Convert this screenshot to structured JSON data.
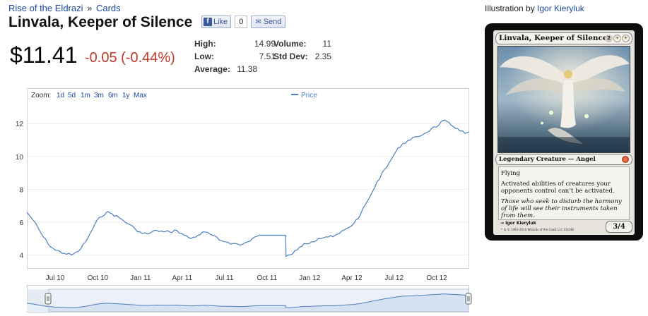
{
  "breadcrumb": {
    "set": "Rise of the Eldrazi",
    "separator": "»",
    "section": "Cards"
  },
  "title": "Linvala, Keeper of Silence",
  "social": {
    "like_label": "Like",
    "like_count": "0",
    "send_label": "Send"
  },
  "price": {
    "current": "$11.41",
    "change": "-0.05 (-0.44%)"
  },
  "stats": {
    "high_label": "High:",
    "high": "14.99",
    "low_label": "Low:",
    "low": "7.51",
    "average_label": "Average:",
    "average": "11.38",
    "volume_label": "Volume:",
    "volume": "11",
    "stddev_label": "Std Dev:",
    "stddev": "2.35"
  },
  "chart": {
    "zoom_label": "Zoom:",
    "zoom_options": [
      "1d",
      "5d",
      "1m",
      "3m",
      "6m",
      "1y",
      "Max"
    ],
    "legend_label": "Price"
  },
  "chart_data": {
    "type": "line",
    "series": [
      {
        "name": "Price",
        "x": [
          "2010-05-01",
          "2010-05-15",
          "2010-06-01",
          "2010-06-15",
          "2010-07-01",
          "2010-07-20",
          "2010-08-05",
          "2010-08-20",
          "2010-09-05",
          "2010-09-20",
          "2010-10-05",
          "2010-10-20",
          "2010-11-01",
          "2010-11-20",
          "2010-12-05",
          "2010-12-20",
          "2011-01-05",
          "2011-01-20",
          "2011-02-05",
          "2011-02-20",
          "2011-03-05",
          "2011-03-20",
          "2011-04-05",
          "2011-04-20",
          "2011-05-05",
          "2011-05-20",
          "2011-06-05",
          "2011-06-20",
          "2011-07-05",
          "2011-07-20",
          "2011-08-05",
          "2011-08-20",
          "2011-09-05",
          "2011-09-20",
          "2011-10-05",
          "2011-10-20",
          "2011-11-05",
          "2011-11-10",
          "2011-11-11",
          "2011-11-20",
          "2011-12-05",
          "2011-12-20",
          "2012-01-05",
          "2012-01-20",
          "2012-02-05",
          "2012-02-20",
          "2012-03-05",
          "2012-03-20",
          "2012-04-05",
          "2012-04-20",
          "2012-05-05",
          "2012-05-20",
          "2012-06-05",
          "2012-06-20",
          "2012-07-05",
          "2012-07-20",
          "2012-08-05",
          "2012-08-20",
          "2012-09-05",
          "2012-09-20",
          "2012-10-05",
          "2012-10-15",
          "2012-11-01",
          "2012-11-15",
          "2012-12-01",
          "2012-12-10"
        ],
        "y": [
          6.6,
          6.1,
          5.3,
          4.7,
          4.3,
          4.1,
          4.0,
          4.2,
          4.8,
          5.6,
          6.3,
          6.6,
          6.5,
          6.2,
          5.9,
          5.6,
          5.3,
          5.3,
          5.5,
          5.4,
          5.4,
          5.5,
          5.2,
          5.0,
          5.2,
          5.4,
          5.2,
          4.9,
          4.8,
          4.7,
          4.6,
          4.8,
          5.1,
          5.2,
          5.2,
          5.2,
          5.2,
          5.2,
          3.9,
          4.0,
          4.3,
          4.7,
          4.8,
          5.0,
          5.1,
          5.1,
          5.3,
          5.6,
          5.9,
          6.5,
          7.3,
          8.1,
          9.0,
          9.6,
          10.3,
          10.8,
          11.0,
          11.2,
          11.4,
          11.7,
          11.9,
          12.2,
          11.9,
          11.7,
          11.4,
          11.5
        ]
      }
    ],
    "x_ticks": [
      "Jul 10",
      "Oct 10",
      "Jan 11",
      "Apr 11",
      "Jul 11",
      "Oct 11",
      "Jan 12",
      "Apr 12",
      "Jul 12",
      "Oct 12"
    ],
    "y_ticks": [
      4,
      6,
      8,
      10,
      12
    ],
    "ylim": [
      3.2,
      13.3
    ],
    "grid": true,
    "legend": "top-center"
  },
  "illustration": {
    "label": "Illustration by",
    "artist": "Igor Kieryluk"
  },
  "card": {
    "name": "Linvala, Keeper of Silence",
    "mana": [
      "2",
      "W",
      "W"
    ],
    "type_line": "Legendary Creature — Angel",
    "rules": [
      "Flying",
      "Activated abilities of creatures your opponents control can’t be activated."
    ],
    "flavor": "Those who seek to disturb the harmony of life will see their instruments taken from them.",
    "artist": "Igor Kieryluk",
    "copyright": "™ & © 1993–2010 Wizards of the Coast LLC 33/248",
    "pt": "3/4"
  },
  "colors": {
    "line": "#4a7fbf",
    "link": "#1a4aa0",
    "negative": "#c0392b"
  }
}
